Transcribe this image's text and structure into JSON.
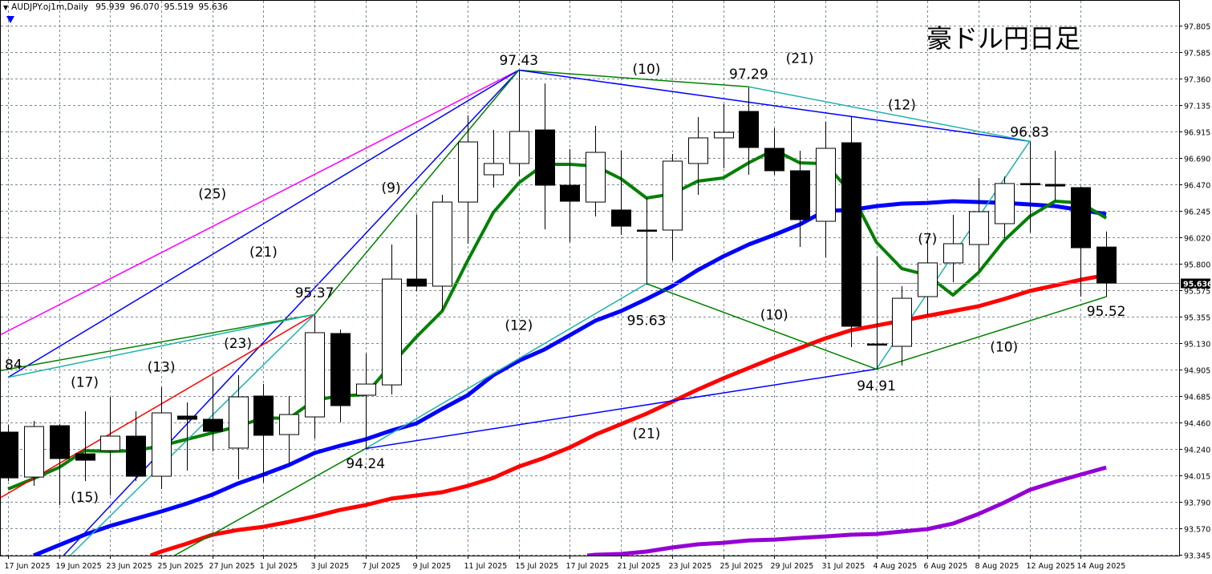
{
  "header": {
    "symbol_timeframe": "AUDJPY.oj1m,Daily",
    "open": "95.939",
    "high": "96.070",
    "low": "95.519",
    "close": "95.636"
  },
  "title": "豪ドル円日足",
  "chart_data": {
    "type": "candlestick",
    "grid": true,
    "ylim": [
      93.345,
      97.805
    ],
    "current_price": "95.636",
    "y_ticks": [
      "97.805",
      "97.585",
      "97.360",
      "97.135",
      "96.915",
      "96.690",
      "96.470",
      "96.245",
      "96.020",
      "95.800",
      "95.575",
      "95.355",
      "95.130",
      "94.905",
      "94.685",
      "94.460",
      "94.240",
      "94.015",
      "93.790",
      "93.570",
      "93.345"
    ],
    "dates": [
      "17 Jun 2025",
      "18 Jun 2025",
      "19 Jun 2025",
      "20 Jun 2025",
      "23 Jun 2025",
      "24 Jun 2025",
      "25 Jun 2025",
      "26 Jun 2025",
      "27 Jun 2025",
      "30 Jun 2025",
      "1 Jul 2025",
      "2 Jul 2025",
      "3 Jul 2025",
      "4 Jul 2025",
      "7 Jul 2025",
      "8 Jul 2025",
      "9 Jul 2025",
      "10 Jul 2025",
      "11 Jul 2025",
      "14 Jul 2025",
      "15 Jul 2025",
      "16 Jul 2025",
      "17 Jul 2025",
      "18 Jul 2025",
      "21 Jul 2025",
      "22 Jul 2025",
      "23 Jul 2025",
      "24 Jul 2025",
      "25 Jul 2025",
      "28 Jul 2025",
      "29 Jul 2025",
      "30 Jul 2025",
      "31 Jul 2025",
      "1 Aug 2025",
      "4 Aug 2025",
      "5 Aug 2025",
      "6 Aug 2025",
      "7 Aug 2025",
      "8 Aug 2025",
      "11 Aug 2025",
      "12 Aug 2025",
      "13 Aug 2025",
      "14 Aug 2025",
      "15 Aug 2025"
    ],
    "open": [
      94.379,
      94.0,
      94.433,
      94.196,
      94.223,
      94.345,
      94.007,
      94.514,
      94.487,
      94.244,
      94.683,
      94.358,
      94.507,
      95.21,
      94.69,
      94.777,
      95.669,
      95.609,
      96.318,
      96.548,
      96.643,
      96.926,
      96.46,
      96.318,
      96.251,
      96.082,
      96.082,
      96.643,
      96.859,
      97.082,
      96.771,
      96.582,
      96.156,
      96.818,
      95.122,
      95.102,
      95.521,
      95.805,
      95.96,
      96.136,
      96.474,
      96.467,
      96.44,
      95.939
    ],
    "high": [
      94.439,
      94.473,
      94.446,
      94.554,
      94.676,
      94.554,
      94.757,
      94.629,
      94.845,
      94.859,
      94.784,
      94.683,
      95.365,
      95.244,
      95.041,
      95.96,
      96.21,
      96.379,
      97.048,
      96.926,
      97.427,
      97.318,
      96.764,
      96.96,
      96.751,
      96.352,
      96.724,
      97.035,
      97.143,
      97.285,
      96.94,
      96.751,
      96.994,
      97.041,
      95.859,
      95.609,
      95.994,
      96.21,
      96.521,
      96.534,
      96.825,
      96.751,
      96.45,
      96.07
    ],
    "low": [
      93.966,
      93.926,
      93.764,
      93.966,
      93.845,
      93.966,
      93.899,
      94.054,
      94.217,
      93.98,
      93.953,
      94.115,
      94.325,
      94.46,
      94.237,
      94.696,
      95.568,
      95.406,
      95.967,
      96.44,
      96.534,
      96.088,
      95.98,
      96.197,
      96.041,
      95.622,
      95.825,
      96.379,
      96.602,
      96.548,
      96.548,
      95.94,
      95.852,
      95.095,
      94.906,
      94.94,
      95.365,
      95.642,
      95.744,
      96.014,
      96.061,
      96.332,
      95.521,
      95.519
    ],
    "close": [
      93.993,
      94.426,
      94.156,
      94.142,
      94.345,
      94.007,
      94.541,
      94.487,
      94.385,
      94.676,
      94.352,
      94.527,
      95.217,
      94.602,
      94.784,
      95.669,
      95.609,
      96.318,
      96.825,
      96.643,
      96.913,
      96.46,
      96.325,
      96.737,
      96.115,
      96.075,
      96.663,
      96.859,
      96.906,
      96.778,
      96.582,
      96.17,
      96.771,
      95.271,
      95.115,
      95.507,
      95.805,
      95.967,
      96.237,
      96.474,
      96.467,
      96.453,
      95.933,
      95.636
    ],
    "up_color": "#ffffff",
    "down_color": "#000000",
    "moving_averages": [
      {
        "color": "#9400d3",
        "values": [
          null,
          null,
          null,
          null,
          null,
          null,
          null,
          null,
          null,
          null,
          null,
          null,
          null,
          null,
          null,
          null,
          null,
          null,
          null,
          null,
          null,
          null,
          93.324,
          93.345,
          93.352,
          93.372,
          93.406,
          93.433,
          93.446,
          93.466,
          93.473,
          93.487,
          93.5,
          93.514,
          93.52,
          93.541,
          93.561,
          93.608,
          93.689,
          93.784,
          93.892,
          93.96,
          94.021,
          94.081
        ]
      },
      {
        "color": "#ff0000",
        "values": [
          null,
          null,
          null,
          null,
          93.223,
          93.291,
          93.372,
          93.439,
          93.514,
          93.554,
          93.581,
          93.622,
          93.669,
          93.723,
          93.764,
          93.818,
          93.845,
          93.872,
          93.926,
          93.993,
          94.088,
          94.162,
          94.25,
          94.358,
          94.446,
          94.534,
          94.635,
          94.737,
          94.831,
          94.919,
          95.007,
          95.088,
          95.169,
          95.237,
          95.277,
          95.318,
          95.359,
          95.399,
          95.44,
          95.501,
          95.568,
          95.615,
          95.663,
          95.703
        ]
      },
      {
        "color": "#0000ff",
        "values": [
          93.257,
          93.338,
          93.426,
          93.514,
          93.588,
          93.649,
          93.71,
          93.777,
          93.852,
          93.946,
          94.021,
          94.102,
          94.203,
          94.264,
          94.318,
          94.392,
          94.453,
          94.575,
          94.69,
          94.859,
          94.98,
          95.075,
          95.196,
          95.318,
          95.399,
          95.501,
          95.609,
          95.744,
          95.859,
          95.96,
          96.041,
          96.129,
          96.244,
          96.251,
          96.284,
          96.305,
          96.311,
          96.325,
          96.318,
          96.311,
          96.298,
          96.284,
          96.251,
          96.217
        ]
      },
      {
        "color": "#008000",
        "values": [
          93.899,
          93.987,
          94.081,
          94.223,
          94.217,
          94.223,
          94.264,
          94.318,
          94.372,
          94.426,
          94.5,
          94.494,
          94.649,
          94.683,
          94.696,
          94.946,
          95.183,
          95.399,
          95.825,
          96.23,
          96.48,
          96.636,
          96.636,
          96.622,
          96.514,
          96.352,
          96.386,
          96.494,
          96.521,
          96.649,
          96.758,
          96.649,
          96.642,
          96.399,
          95.98,
          95.757,
          95.703,
          95.534,
          95.724,
          95.994,
          96.197,
          96.325,
          96.311,
          96.183
        ]
      }
    ],
    "trend_lines": [
      {
        "color": "#ff00ff",
        "from": {
          "date": "16 Jun 2025",
          "price": 95.122
        },
        "to": {
          "date": "15 Jul 2025",
          "price": 97.43
        }
      },
      {
        "color": "#0000ff",
        "from": {
          "date": "17 Jun 2025",
          "price": 94.84
        },
        "to": {
          "date": "15 Jul 2025",
          "price": 97.43
        }
      },
      {
        "color": "#0000ff",
        "from": {
          "date": "16 Jun 2025",
          "price": 92.61
        },
        "to": {
          "date": "15 Jul 2025",
          "price": 97.43
        }
      },
      {
        "color": "#008000",
        "from": {
          "date": "3 Jul 2025",
          "price": 95.37
        },
        "to": {
          "date": "15 Jul 2025",
          "price": 97.43
        }
      },
      {
        "color": "#008000",
        "from": {
          "date": "16 Jun 2025",
          "price": 94.87
        },
        "to": {
          "date": "3 Jul 2025",
          "price": 95.37
        }
      },
      {
        "color": "#20b2aa",
        "from": {
          "date": "17 Jun 2025",
          "price": 94.84
        },
        "to": {
          "date": "3 Jul 2025",
          "price": 95.37
        }
      },
      {
        "color": "#ff0000",
        "from": {
          "date": "16 Jun 2025",
          "price": 93.737
        },
        "to": {
          "date": "3 Jul 2025",
          "price": 95.37
        }
      },
      {
        "color": "#20b2aa",
        "from": {
          "date": "16 Jun 2025",
          "price": 92.61
        },
        "to": {
          "date": "3 Jul 2025",
          "price": 95.37
        }
      },
      {
        "color": "#008000",
        "from": {
          "date": "16 Jun 2025",
          "price": 92.433
        },
        "to": {
          "date": "7 Jul 2025",
          "price": 94.24
        }
      },
      {
        "color": "#20b2aa",
        "from": {
          "date": "7 Jul 2025",
          "price": 94.24
        },
        "to": {
          "date": "22 Jul 2025",
          "price": 95.63
        }
      },
      {
        "color": "#0000ff",
        "from": {
          "date": "7 Jul 2025",
          "price": 94.24
        },
        "to": {
          "date": "4 Aug 2025",
          "price": 94.91
        }
      },
      {
        "color": "#008000",
        "from": {
          "date": "15 Jul 2025",
          "price": 97.43
        },
        "to": {
          "date": "28 Jul 2025",
          "price": 97.29
        }
      },
      {
        "color": "#0000ff",
        "from": {
          "date": "15 Jul 2025",
          "price": 97.43
        },
        "to": {
          "date": "12 Aug 2025",
          "price": 96.83
        }
      },
      {
        "color": "#20b2aa",
        "from": {
          "date": "28 Jul 2025",
          "price": 97.29
        },
        "to": {
          "date": "12 Aug 2025",
          "price": 96.83
        }
      },
      {
        "color": "#008000",
        "from": {
          "date": "22 Jul 2025",
          "price": 95.63
        },
        "to": {
          "date": "4 Aug 2025",
          "price": 94.91
        }
      },
      {
        "color": "#20b2aa",
        "from": {
          "date": "4 Aug 2025",
          "price": 94.91
        },
        "to": {
          "date": "12 Aug 2025",
          "price": 96.83
        }
      },
      {
        "color": "#008000",
        "from": {
          "date": "4 Aug 2025",
          "price": 94.91
        },
        "to": {
          "date": "15 Aug 2025",
          "price": 95.52
        }
      }
    ],
    "annotations": [
      {
        "text": "97.43",
        "date": "15 Jul 2025",
        "price": 97.515
      },
      {
        "text": "97.29",
        "date": "28 Jul 2025",
        "price": 97.4
      },
      {
        "text": "96.83",
        "date": "12 Aug 2025",
        "price": 96.91
      },
      {
        "text": "95.37",
        "date": "3 Jul 2025",
        "price": 95.555
      },
      {
        "text": "95.63",
        "date": "22 Jul 2025",
        "price": 95.32
      },
      {
        "text": "94.24",
        "date": "7 Jul 2025",
        "price": 94.115
      },
      {
        "text": "94.91",
        "date": "4 Aug 2025",
        "price": 94.77
      },
      {
        "text": "95.52",
        "date": "15 Aug 2025",
        "price": 95.4
      },
      {
        "text": "84",
        "date": "17 Jun 2025",
        "price": 94.95
      },
      {
        "text": "(25)",
        "date": "27 Jun 2025",
        "price": 96.39
      },
      {
        "text": "(21)",
        "date": "1 Jul 2025",
        "price": 95.9
      },
      {
        "text": "(9)",
        "date": "8 Jul 2025",
        "price": 96.44
      },
      {
        "text": "(23)",
        "date": "30 Jun 2025",
        "price": 95.13
      },
      {
        "text": "(17)",
        "date": "20 Jun 2025",
        "price": 94.8
      },
      {
        "text": "(13)",
        "date": "25 Jun 2025",
        "price": 94.93
      },
      {
        "text": "(15)",
        "date": "20 Jun 2025",
        "price": 93.83
      },
      {
        "text": "(10)",
        "date": "22 Jul 2025",
        "price": 97.44
      },
      {
        "text": "(21)",
        "date": "30 Jul 2025",
        "price": 97.53
      },
      {
        "text": "(12)",
        "date": "5 Aug 2025",
        "price": 97.14
      },
      {
        "text": "(12)",
        "date": "15 Jul 2025",
        "price": 95.28
      },
      {
        "text": "(10)",
        "date": "29 Jul 2025",
        "price": 95.37
      },
      {
        "text": "(21)",
        "date": "22 Jul 2025",
        "price": 94.37
      },
      {
        "text": "(7)",
        "date": "6 Aug 2025",
        "price": 96.01
      },
      {
        "text": "(10)",
        "date": "11 Aug 2025",
        "price": 95.1
      }
    ]
  }
}
